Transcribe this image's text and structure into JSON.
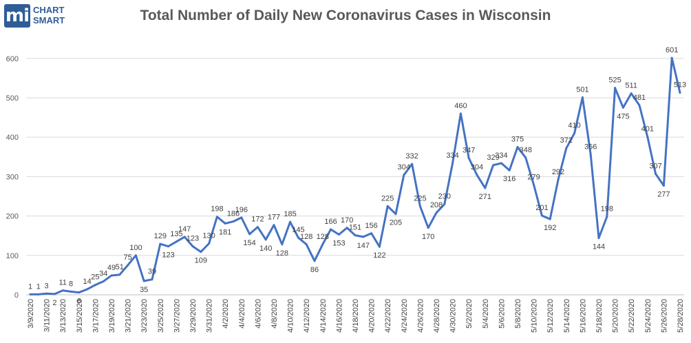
{
  "logo": {
    "mark": "mi",
    "line1": "CHART",
    "line2": "SMART"
  },
  "chart_data": {
    "type": "line",
    "title": "Total Number of Daily New Coronavirus Cases in Wisconsin",
    "xlabel": "",
    "ylabel": "",
    "ylim": [
      0,
      680
    ],
    "yticks": [
      0,
      100,
      200,
      300,
      400,
      500,
      600
    ],
    "grid": "horizontal",
    "legend": "none",
    "line_color": "#4472c4",
    "x": [
      "3/9/2020",
      "3/10/2020",
      "3/11/2020",
      "3/12/2020",
      "3/13/2020",
      "3/14/2020",
      "3/15/2020",
      "3/16/2020",
      "3/17/2020",
      "3/18/2020",
      "3/19/2020",
      "3/20/2020",
      "3/21/2020",
      "3/22/2020",
      "3/23/2020",
      "3/24/2020",
      "3/25/2020",
      "3/26/2020",
      "3/27/2020",
      "3/28/2020",
      "3/29/2020",
      "3/30/2020",
      "3/31/2020",
      "4/1/2020",
      "4/2/2020",
      "4/3/2020",
      "4/4/2020",
      "4/5/2020",
      "4/6/2020",
      "4/7/2020",
      "4/8/2020",
      "4/9/2020",
      "4/10/2020",
      "4/11/2020",
      "4/12/2020",
      "4/13/2020",
      "4/14/2020",
      "4/15/2020",
      "4/16/2020",
      "4/17/2020",
      "4/18/2020",
      "4/19/2020",
      "4/20/2020",
      "4/21/2020",
      "4/22/2020",
      "4/23/2020",
      "4/24/2020",
      "4/25/2020",
      "4/26/2020",
      "4/27/2020",
      "4/28/2020",
      "4/29/2020",
      "4/30/2020",
      "5/1/2020",
      "5/2/2020",
      "5/3/2020",
      "5/4/2020",
      "5/5/2020",
      "5/6/2020",
      "5/7/2020",
      "5/8/2020",
      "5/9/2020",
      "5/10/2020",
      "5/11/2020",
      "5/12/2020",
      "5/13/2020",
      "5/14/2020",
      "5/15/2020",
      "5/16/2020",
      "5/17/2020",
      "5/18/2020",
      "5/19/2020",
      "5/20/2020",
      "5/21/2020",
      "5/22/2020",
      "5/23/2020",
      "5/24/2020",
      "5/25/2020",
      "5/26/2020",
      "5/27/2020",
      "5/28/2020"
    ],
    "x_tick_labels": [
      "3/9/2020",
      "3/11/2020",
      "3/13/2020",
      "3/15/2020",
      "3/17/2020",
      "3/19/2020",
      "3/21/2020",
      "3/23/2020",
      "3/25/2020",
      "3/27/2020",
      "3/29/2020",
      "3/31/2020",
      "4/2/2020",
      "4/4/2020",
      "4/6/2020",
      "4/8/2020",
      "4/10/2020",
      "4/12/2020",
      "4/14/2020",
      "4/16/2020",
      "4/18/2020",
      "4/20/2020",
      "4/22/2020",
      "4/24/2020",
      "4/26/2020",
      "4/28/2020",
      "4/30/2020",
      "5/2/2020",
      "5/4/2020",
      "5/6/2020",
      "5/8/2020",
      "5/10/2020",
      "5/12/2020",
      "5/14/2020",
      "5/16/2020",
      "5/18/2020",
      "5/20/2020",
      "5/22/2020",
      "5/24/2020",
      "5/26/2020",
      "5/28/2020"
    ],
    "series": [
      {
        "values": [
          1,
          1,
          3,
          2,
          11,
          8,
          6,
          14,
          25,
          34,
          49,
          51,
          75,
          100,
          35,
          39,
          129,
          123,
          135,
          147,
          123,
          109,
          130,
          198,
          181,
          186,
          196,
          154,
          172,
          140,
          177,
          128,
          185,
          145,
          128,
          86,
          128,
          166,
          153,
          170,
          151,
          147,
          156,
          122,
          225,
          205,
          304,
          332,
          225,
          170,
          208,
          230,
          334,
          460,
          347,
          304,
          271,
          329,
          334,
          316,
          375,
          348,
          279,
          201,
          192,
          292,
          372,
          410,
          501,
          356,
          144,
          198,
          525,
          475,
          511,
          481,
          401,
          307,
          277,
          601,
          513
        ]
      }
    ]
  }
}
